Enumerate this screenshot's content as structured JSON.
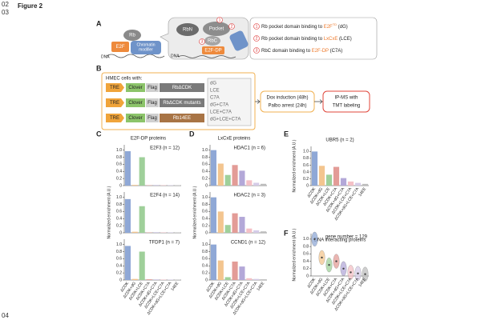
{
  "line_numbers": [
    "02",
    "03",
    "04"
  ],
  "figure_title": "Figure 2",
  "panel_A": {
    "label": "A",
    "left": {
      "rb": "Rb",
      "e2f": "E2F",
      "modifier": [
        "Chromatin",
        "modifier"
      ],
      "dna": "DNA"
    },
    "bubble": {
      "rbn": "RbN",
      "pocket": "Pocket",
      "rbc": "RbC",
      "e2fdp": "E2F-DP",
      "dna": "DNA",
      "marks": [
        "1",
        "2",
        "3"
      ]
    },
    "legend": [
      {
        "num": "1",
        "text": "Rb pocket domain binding to ",
        "highlight": "E2F",
        "sup": "TD",
        "tail": " (dG)"
      },
      {
        "num": "2",
        "text": "Rb pocket domain binding to ",
        "highlight": "LxCxE",
        "sup": "",
        "tail": " (LCE)"
      },
      {
        "num": "3",
        "text": "RbC domain binding to ",
        "highlight": "E2F-DP",
        "sup": "",
        "tail": " (C7A)"
      }
    ]
  },
  "panel_B": {
    "label": "B",
    "box_title": "HMEC cells with:",
    "rows": [
      {
        "tre": "TRE",
        "clover": "Clover",
        "flag": "Flag",
        "rb": "RbΔCDK"
      },
      {
        "tre": "TRE",
        "clover": "Clover",
        "flag": "Flag",
        "rb": "RbΔCDK mutants"
      },
      {
        "tre": "TRE",
        "clover": "Clover",
        "flag": "Flag",
        "rb": "Rb14EE"
      }
    ],
    "mutants": [
      "dG",
      "LCE",
      "C7A",
      "dG+C7A",
      "LCE+C7A",
      "dG+LCE+C7A"
    ],
    "step1": [
      "Dox induction (48h)",
      "Palbo arrest (24h)"
    ],
    "step2": [
      "IP-MS with",
      "TMT labeling"
    ]
  },
  "categories": [
    "ΔCDK",
    "ΔCDK+dG",
    "ΔCDK+LCE",
    "ΔCDK+C7A",
    "ΔCDK+dG+C7A",
    "ΔCDK+LCE+C7A",
    "ΔCDK+dG+LCE+C7A",
    "14EE"
  ],
  "colors": [
    "#8fa8d6",
    "#f3c58f",
    "#9fd09a",
    "#e39c97",
    "#b3a8d8",
    "#f4c0c6",
    "#d5cce8",
    "#bdbdbd"
  ],
  "panels": [
    {
      "label": "C",
      "title": "E2F-DP proteins",
      "ylabel": "Normalized enrichment (A.U.)",
      "ylim": [
        0,
        1.15
      ],
      "yticks": [
        0,
        0.2,
        0.4,
        0.6,
        0.8,
        {
          "value": 1,
          "label": "1.0"
        }
      ],
      "charts": [
        {
          "name": "E2F3 (n = 12)",
          "values": [
            0.97,
            0.02,
            0.8,
            0.01,
            0.01,
            0.01,
            0.01,
            0.01
          ]
        },
        {
          "name": "E2F4 (n = 14)",
          "values": [
            0.95,
            0.03,
            0.75,
            0.01,
            0.01,
            0.01,
            0.01,
            0.01
          ]
        },
        {
          "name": "TFDP1 (n = 7)",
          "values": [
            0.96,
            0.03,
            0.8,
            0.02,
            0.01,
            0.01,
            0.01,
            0.01
          ]
        }
      ]
    },
    {
      "label": "D",
      "title": "LxCxE proteins",
      "ylabel": "Normalized enrichment (A.U.)",
      "ylim": [
        0,
        1.15
      ],
      "yticks": [
        0,
        0.2,
        0.4,
        0.6,
        0.8,
        {
          "value": 1,
          "label": "1.0"
        }
      ],
      "charts": [
        {
          "name": "HDAC1 (n = 6)",
          "values": [
            1.0,
            0.62,
            0.3,
            0.58,
            0.42,
            0.15,
            0.08,
            0.05
          ]
        },
        {
          "name": "HDAC2 (n = 3)",
          "values": [
            1.0,
            0.6,
            0.22,
            0.55,
            0.45,
            0.12,
            0.07,
            0.04
          ]
        },
        {
          "name": "CCND1 (n = 12)",
          "values": [
            1.0,
            0.55,
            0.08,
            0.52,
            0.38,
            0.05,
            0.03,
            0.02
          ]
        }
      ]
    },
    {
      "label": "E",
      "title": "",
      "ylabel": "Normalized enrichment (A.U.)",
      "ylim": [
        0,
        1.15
      ],
      "yticks": [
        0,
        0.2,
        0.4,
        0.6,
        0.8,
        {
          "value": 1,
          "label": "1.0"
        }
      ],
      "charts": [
        {
          "name": "UBR5 (n = 2)",
          "values": [
            1.0,
            0.58,
            0.32,
            0.55,
            0.22,
            0.12,
            0.08,
            0.05
          ]
        }
      ]
    },
    {
      "label": "F",
      "title": "DNA interacting proteins",
      "ylabel": "Normalized enrichment (A.U.)",
      "ylim": [
        0,
        1.15
      ],
      "yticks": [
        0,
        0.2,
        0.4,
        0.6,
        0.8,
        {
          "value": 1,
          "label": "1.0"
        }
      ],
      "type": "violin",
      "charts": [
        {
          "name": "gene number = 129",
          "values": [
            1.0,
            0.5,
            0.3,
            0.4,
            0.2,
            0.1,
            0.07,
            0.05
          ]
        }
      ]
    }
  ]
}
